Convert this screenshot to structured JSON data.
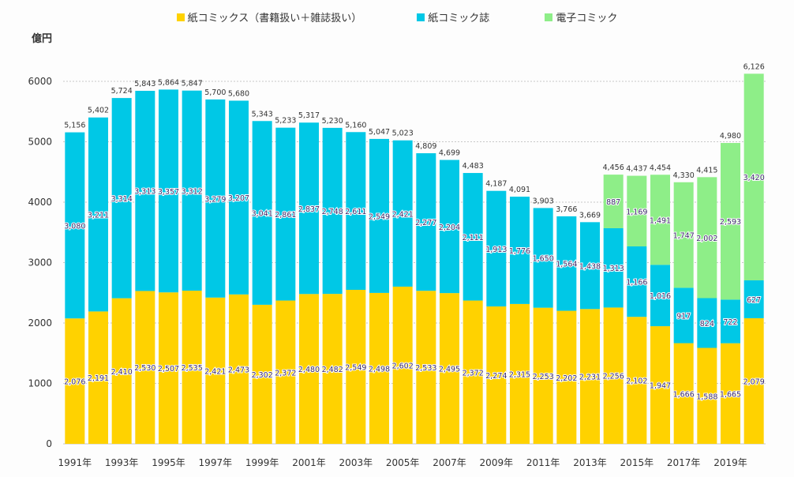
{
  "chart_data": {
    "type": "bar",
    "stacked": true,
    "ylabel": "億円",
    "ylim": [
      0,
      6000
    ],
    "yticks": [
      0,
      1000,
      2000,
      3000,
      4000,
      5000,
      6000
    ],
    "grid": true,
    "legend_position": "top",
    "categories": [
      "1991",
      "1992",
      "1993",
      "1994",
      "1995",
      "1996",
      "1997",
      "1998",
      "1999",
      "2000",
      "2001",
      "2002",
      "2003",
      "2004",
      "2005",
      "2006",
      "2007",
      "2008",
      "2009",
      "2010",
      "2011",
      "2012",
      "2013",
      "2014",
      "2015",
      "2016",
      "2017",
      "2018",
      "2019",
      "2020"
    ],
    "xtick_labels": [
      "1991年",
      "1993年",
      "1995年",
      "1997年",
      "1999年",
      "2001年",
      "2003年",
      "2005年",
      "2007年",
      "2009年",
      "2011年",
      "2013年",
      "2015年",
      "2017年",
      "2019年"
    ],
    "series": [
      {
        "name": "紙コミックス（書籍扱い＋雑誌扱い）",
        "color": "#FFD200",
        "values": [
          2076,
          2191,
          2410,
          2530,
          2507,
          2535,
          2421,
          2473,
          2302,
          2372,
          2480,
          2482,
          2549,
          2498,
          2602,
          2533,
          2495,
          2372,
          2274,
          2315,
          2253,
          2202,
          2231,
          2256,
          2102,
          1947,
          1666,
          1588,
          1665,
          2079
        ]
      },
      {
        "name": "紙コミック誌",
        "color": "#00C8E6",
        "values": [
          3080,
          3211,
          3314,
          3313,
          3357,
          3312,
          3279,
          3207,
          3041,
          2861,
          2837,
          2748,
          2611,
          2549,
          2421,
          2277,
          2204,
          2111,
          1913,
          1776,
          1650,
          1564,
          1438,
          1313,
          1166,
          1016,
          917,
          824,
          722,
          627
        ]
      },
      {
        "name": "電子コミック",
        "color": "#8EEE88",
        "values": [
          0,
          0,
          0,
          0,
          0,
          0,
          0,
          0,
          0,
          0,
          0,
          0,
          0,
          0,
          0,
          0,
          0,
          0,
          0,
          0,
          0,
          0,
          0,
          887,
          1169,
          1491,
          1747,
          2002,
          2593,
          3420
        ]
      }
    ],
    "totals": [
      5156,
      5402,
      5724,
      5843,
      5864,
      5847,
      5700,
      5680,
      5343,
      5233,
      5317,
      5230,
      5160,
      5047,
      5023,
      4809,
      4699,
      4483,
      4187,
      4091,
      3903,
      3766,
      3669,
      4456,
      4437,
      4454,
      4330,
      4415,
      4980,
      6126
    ]
  }
}
